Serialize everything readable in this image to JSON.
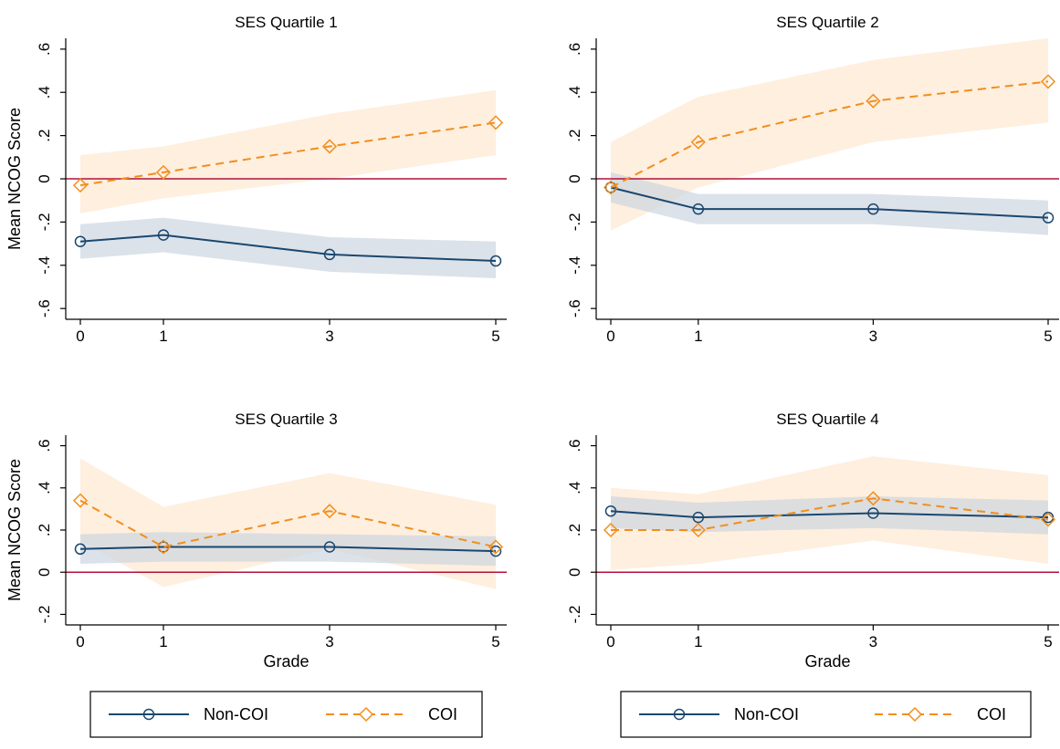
{
  "colors": {
    "non_coi": "#1a476f",
    "coi": "#f28e1c",
    "non_coi_band": "#c9d3df",
    "coi_band": "#fde2c4",
    "zero_line": "#b0103a",
    "axis": "#000000"
  },
  "chart_data": [
    {
      "type": "line",
      "title": "SES Quartile 1",
      "ylabel": "Mean NCOG Score",
      "xlabel": "",
      "x": [
        0,
        1,
        3,
        5
      ],
      "xticks": [
        "0",
        "1",
        "3",
        "5"
      ],
      "ylim": [
        -0.65,
        0.65
      ],
      "yticks": [
        -0.6,
        -0.4,
        -0.2,
        0,
        0.2,
        0.4,
        0.6
      ],
      "yticklabels": [
        "-.6",
        "-.4",
        "-.2",
        "0",
        ".2",
        ".4",
        ".6"
      ],
      "reference_line": 0,
      "series": [
        {
          "name": "Non-COI",
          "values": [
            -0.29,
            -0.26,
            -0.35,
            -0.38
          ],
          "lower": [
            -0.37,
            -0.34,
            -0.43,
            -0.46
          ],
          "upper": [
            -0.21,
            -0.18,
            -0.27,
            -0.29
          ]
        },
        {
          "name": "COI",
          "values": [
            -0.03,
            0.03,
            0.15,
            0.26
          ],
          "lower": [
            -0.16,
            -0.09,
            0.0,
            0.11
          ],
          "upper": [
            0.11,
            0.15,
            0.3,
            0.41
          ]
        }
      ]
    },
    {
      "type": "line",
      "title": "SES Quartile 2",
      "ylabel": "",
      "xlabel": "",
      "x": [
        0,
        1,
        3,
        5
      ],
      "xticks": [
        "0",
        "1",
        "3",
        "5"
      ],
      "ylim": [
        -0.65,
        0.65
      ],
      "yticks": [
        -0.6,
        -0.4,
        -0.2,
        0,
        0.2,
        0.4,
        0.6
      ],
      "yticklabels": [
        "-.6",
        "-.4",
        "-.2",
        "0",
        ".2",
        ".4",
        ".6"
      ],
      "reference_line": 0,
      "series": [
        {
          "name": "Non-COI",
          "values": [
            -0.04,
            -0.14,
            -0.14,
            -0.18
          ],
          "lower": [
            -0.11,
            -0.21,
            -0.21,
            -0.26
          ],
          "upper": [
            0.03,
            -0.07,
            -0.07,
            -0.1
          ]
        },
        {
          "name": "COI",
          "values": [
            -0.04,
            0.17,
            0.36,
            0.45
          ],
          "lower": [
            -0.24,
            -0.04,
            0.17,
            0.26
          ],
          "upper": [
            0.17,
            0.38,
            0.55,
            0.65
          ]
        }
      ]
    },
    {
      "type": "line",
      "title": "SES Quartile 3",
      "ylabel": "Mean NCOG Score",
      "xlabel": "Grade",
      "x": [
        0,
        1,
        3,
        5
      ],
      "xticks": [
        "0",
        "1",
        "3",
        "5"
      ],
      "ylim": [
        -0.25,
        0.65
      ],
      "yticks": [
        -0.2,
        0,
        0.2,
        0.4,
        0.6
      ],
      "yticklabels": [
        "-.2",
        "0",
        ".2",
        ".4",
        ".6"
      ],
      "reference_line": 0,
      "series": [
        {
          "name": "Non-COI",
          "values": [
            0.11,
            0.12,
            0.12,
            0.1
          ],
          "lower": [
            0.04,
            0.05,
            0.05,
            0.03
          ],
          "upper": [
            0.18,
            0.19,
            0.18,
            0.17
          ]
        },
        {
          "name": "COI",
          "values": [
            0.34,
            0.12,
            0.29,
            0.12
          ],
          "lower": [
            0.15,
            -0.07,
            0.11,
            -0.08
          ],
          "upper": [
            0.54,
            0.31,
            0.47,
            0.32
          ]
        }
      ]
    },
    {
      "type": "line",
      "title": "SES Quartile 4",
      "ylabel": "",
      "xlabel": "Grade",
      "x": [
        0,
        1,
        3,
        5
      ],
      "xticks": [
        "0",
        "1",
        "3",
        "5"
      ],
      "ylim": [
        -0.25,
        0.65
      ],
      "yticks": [
        -0.2,
        0,
        0.2,
        0.4,
        0.6
      ],
      "yticklabels": [
        "-.2",
        "0",
        ".2",
        ".4",
        ".6"
      ],
      "reference_line": 0,
      "series": [
        {
          "name": "Non-COI",
          "values": [
            0.29,
            0.26,
            0.28,
            0.26
          ],
          "lower": [
            0.21,
            0.19,
            0.21,
            0.18
          ],
          "upper": [
            0.36,
            0.33,
            0.36,
            0.34
          ]
        },
        {
          "name": "COI",
          "values": [
            0.2,
            0.2,
            0.35,
            0.25
          ],
          "lower": [
            0.01,
            0.04,
            0.15,
            0.04
          ],
          "upper": [
            0.4,
            0.37,
            0.55,
            0.46
          ]
        }
      ]
    }
  ],
  "legends": [
    {
      "items": [
        "Non-COI",
        "COI"
      ]
    },
    {
      "items": [
        "Non-COI",
        "COI"
      ]
    }
  ]
}
